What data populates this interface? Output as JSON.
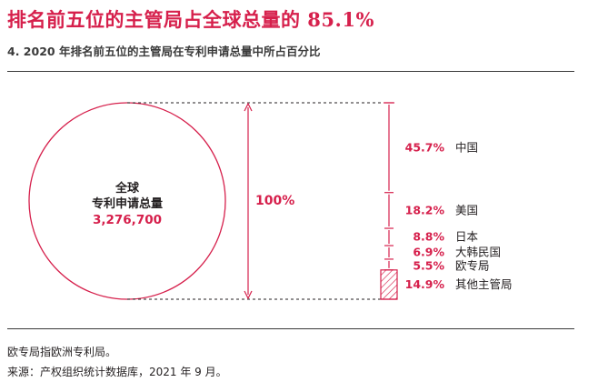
{
  "chart_data": {
    "type": "bar",
    "title": "排名前五位的主管局占全球总量的 85.1%",
    "subtitle": "4. 2020 年排名前五位的主管局在专利申请总量中所占百分比",
    "total": {
      "label_line1": "全球",
      "label_line2": "专利申请总量",
      "value": "3,276,700",
      "percent_label": "100%"
    },
    "categories": [
      "中国",
      "美国",
      "日本",
      "大韩民国",
      "欧专局",
      "其他主管局"
    ],
    "values": [
      45.7,
      18.2,
      8.8,
      6.9,
      5.5,
      14.9
    ],
    "value_labels": [
      "45.7%",
      "18.2%",
      "8.8%",
      "6.9%",
      "5.5%",
      "14.9%"
    ],
    "colors": {
      "accent": "#d6204c",
      "text": "#231f20",
      "rule": "#3a3a3a"
    }
  },
  "notes": {
    "note": "欧专局指欧洲专利局。",
    "source": "来源：产权组织统计数据库，2021 年 9 月。"
  }
}
